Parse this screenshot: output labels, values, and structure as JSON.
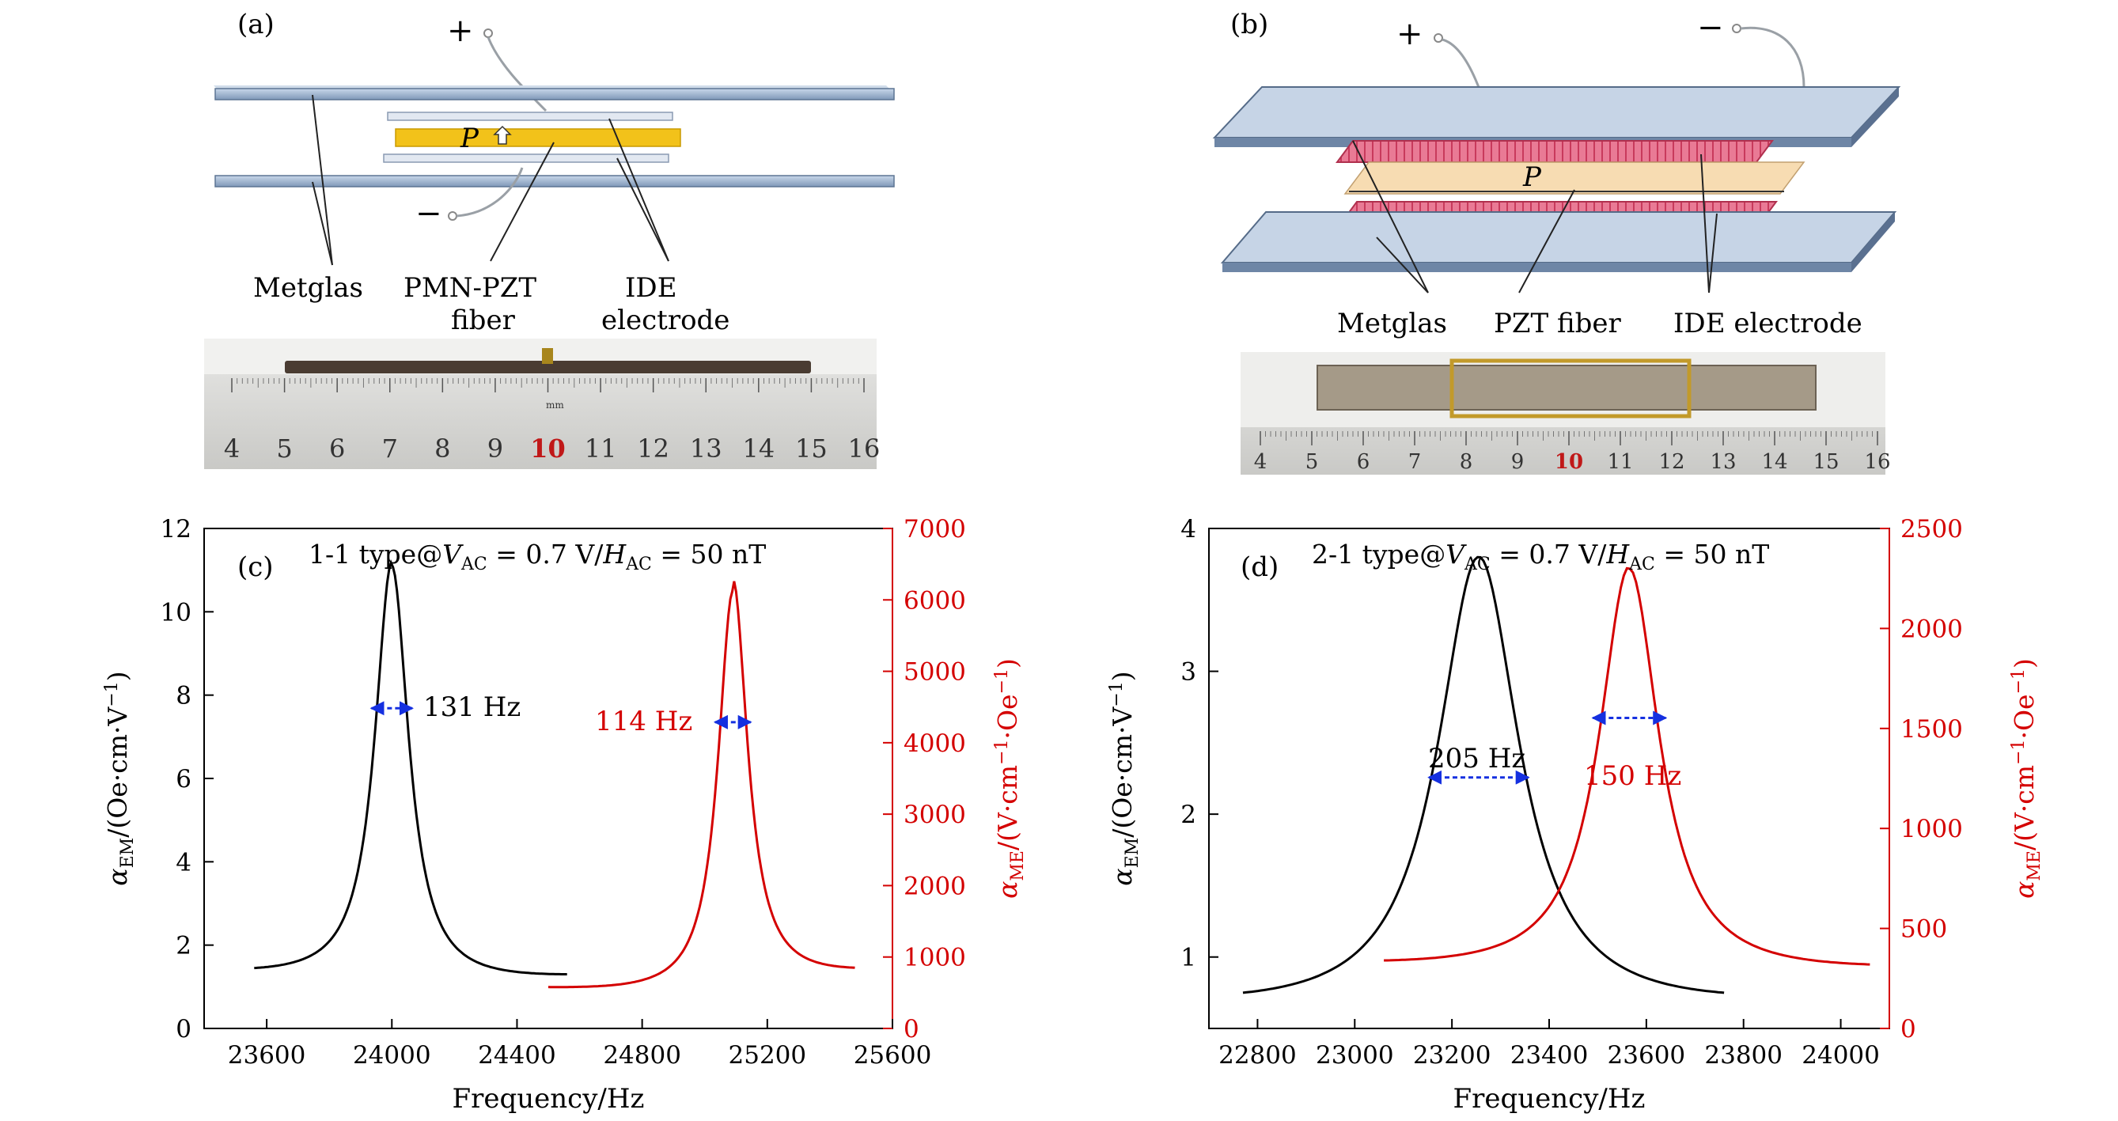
{
  "panels": {
    "a": {
      "tag": "(a)",
      "plus": "+",
      "minus": "−",
      "pol": "P",
      "labels": [
        "Metglas",
        "PMN-PZT",
        "fiber",
        "IDE",
        "electrode"
      ],
      "ruler": [
        "4",
        "5",
        "6",
        "7",
        "8",
        "9",
        "10",
        "11",
        "12",
        "13",
        "14",
        "15",
        "16"
      ],
      "ruler_mark": "mm"
    },
    "b": {
      "tag": "(b)",
      "plus": "+",
      "minus": "−",
      "pol": "P",
      "labels": [
        "Metglas",
        "PZT fiber",
        "IDE electrode"
      ],
      "ruler": [
        "4",
        "5",
        "6",
        "7",
        "8",
        "9",
        "10",
        "11",
        "12",
        "13",
        "14",
        "15",
        "16"
      ]
    }
  },
  "colors": {
    "black_curve": "#000000",
    "red_curve": "#d40000",
    "arrow_blue": "#1530e0",
    "metglas": "#a9c0dc",
    "pzt_fiber": "#f2c21a",
    "ide": "#e05a7a"
  },
  "chart_data": [
    {
      "id": "c",
      "type": "line",
      "tag": "(c)",
      "annotation": "1-1 type@V_AC = 0.7 V/H_AC = 50 nT",
      "xlabel": "Frequency/Hz",
      "ylabel_left": "α_EM/(Oe·cm·V⁻¹)",
      "ylabel_right": "α_ME/(V·cm⁻¹·Oe⁻¹)",
      "xlim": [
        23400,
        25600
      ],
      "ylim_left": [
        0,
        12
      ],
      "ylim_right": [
        0,
        7000
      ],
      "xticks": [
        23600,
        24000,
        24400,
        24800,
        25200,
        25600
      ],
      "yticks_left": [
        0,
        2,
        4,
        6,
        8,
        10,
        12
      ],
      "yticks_right": [
        0,
        1000,
        2000,
        3000,
        4000,
        5000,
        6000,
        7000
      ],
      "series": [
        {
          "axis": "left",
          "color": "#000000",
          "peak_x": 24000,
          "peak_y": 10.9,
          "fwhm": 131,
          "x_range": [
            23560,
            24560
          ],
          "x": [
            23560,
            23700,
            23800,
            23900,
            23950,
            24000,
            24050,
            24100,
            24200,
            24300,
            24400,
            24560
          ],
          "y": [
            1.45,
            1.95,
            2.7,
            4.9,
            7.7,
            10.9,
            7.7,
            4.9,
            2.7,
            1.95,
            1.6,
            1.3
          ]
        },
        {
          "axis": "right",
          "color": "#d40000",
          "peak_x": 25090,
          "peak_y": 6040,
          "fwhm": 114,
          "x_range": [
            24500,
            25480
          ],
          "x": [
            24500,
            24700,
            24900,
            25000,
            25050,
            25090,
            25130,
            25180,
            25300,
            25480
          ],
          "y": [
            580,
            800,
            1400,
            2800,
            4300,
            6040,
            4300,
            2700,
            1400,
            850
          ]
        }
      ],
      "width_labels": [
        "131 Hz",
        "114 Hz"
      ]
    },
    {
      "id": "d",
      "type": "line",
      "tag": "(d)",
      "annotation": "2-1 type@V_AC = 0.7 V/H_AC = 50 nT",
      "xlabel": "Frequency/Hz",
      "ylabel_left": "α_EM/(Oe·cm·V⁻¹)",
      "ylabel_right": "α_ME/(V·cm⁻¹·Oe⁻¹)",
      "xlim": [
        22700,
        24100
      ],
      "ylim_left": [
        0.5,
        4
      ],
      "ylim_right": [
        0,
        2500
      ],
      "xticks": [
        22800,
        23000,
        23200,
        23400,
        23600,
        23800,
        24000
      ],
      "yticks_left": [
        1,
        2,
        3,
        4
      ],
      "yticks_right": [
        0,
        500,
        1000,
        1500,
        2000,
        2500
      ],
      "series": [
        {
          "axis": "left",
          "color": "#000000",
          "peak_x": 23255,
          "peak_y": 3.7,
          "fwhm": 205,
          "x_range": [
            22770,
            23760
          ],
          "x": [
            22770,
            22900,
            23000,
            23100,
            23200,
            23255,
            23300,
            23400,
            23500,
            23600,
            23760
          ],
          "y": [
            0.75,
            1.0,
            1.4,
            2.2,
            3.35,
            3.7,
            3.45,
            2.3,
            1.45,
            1.05,
            0.75
          ]
        },
        {
          "axis": "right",
          "color": "#d40000",
          "peak_x": 23565,
          "peak_y": 2250,
          "fwhm": 150,
          "x_range": [
            23060,
            24060
          ],
          "x": [
            23060,
            23200,
            23300,
            23400,
            23500,
            23565,
            23650,
            23750,
            23900,
            24060
          ],
          "y": [
            340,
            440,
            560,
            900,
            1800,
            2250,
            1650,
            850,
            500,
            320
          ]
        }
      ],
      "width_labels": [
        "205 Hz",
        "150 Hz"
      ]
    }
  ]
}
